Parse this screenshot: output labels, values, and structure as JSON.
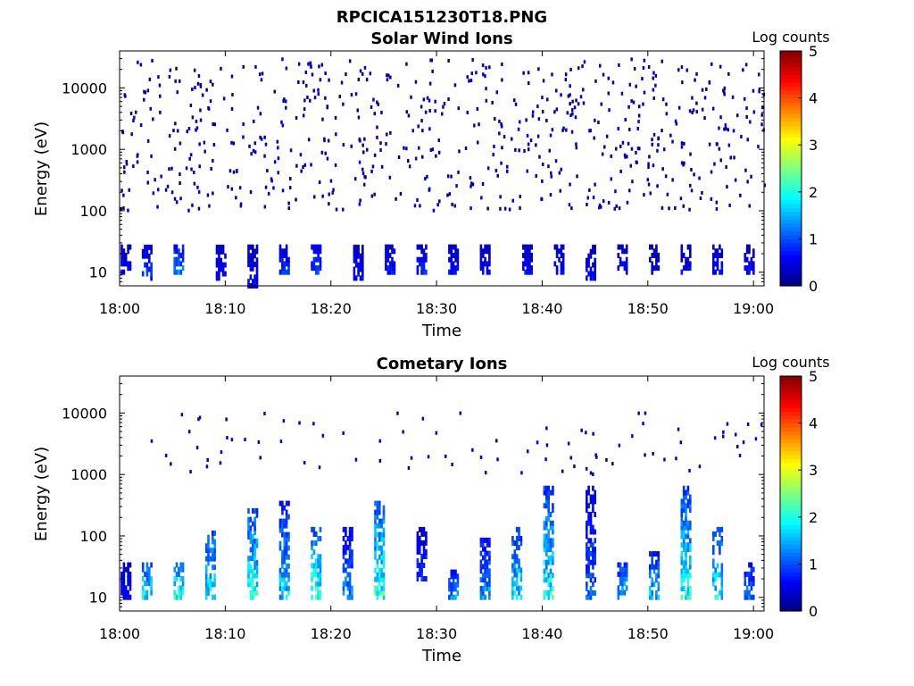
{
  "figure": {
    "title": "RPCICA151230T18.PNG"
  },
  "chart_data": [
    {
      "type": "heatmap",
      "title": "Solar Wind Ions",
      "xlabel": "Time",
      "ylabel": "Energy (eV)",
      "x_ticks": [
        "18:00",
        "18:10",
        "18:20",
        "18:30",
        "18:40",
        "18:50",
        "19:00"
      ],
      "x_range": [
        "18:00",
        "19:01"
      ],
      "y_scale": "log",
      "y_ticks": [
        "10",
        "100",
        "1000",
        "10000"
      ],
      "y_range": [
        6,
        40000
      ],
      "colorbar": {
        "label": "Log counts",
        "ticks": [
          "0",
          "1",
          "2",
          "3",
          "4",
          "5"
        ],
        "range": [
          0,
          5
        ],
        "colormap": "jet"
      },
      "background_counts": {
        "energy_range_eV": [
          100,
          30000
        ],
        "log_counts": 0.1,
        "description_level": "sparse low counts"
      },
      "bursts": [
        {
          "time": "18:00",
          "energy_low_eV": 10,
          "energy_high_eV": 30,
          "log_counts": 0.5
        },
        {
          "time": "18:02",
          "energy_low_eV": 8,
          "energy_high_eV": 30,
          "log_counts": 0.8
        },
        {
          "time": "18:05",
          "energy_low_eV": 10,
          "energy_high_eV": 30,
          "log_counts": 1.2
        },
        {
          "time": "18:09",
          "energy_low_eV": 8,
          "energy_high_eV": 30,
          "log_counts": 0.6
        },
        {
          "time": "18:12",
          "energy_low_eV": 6,
          "energy_high_eV": 30,
          "log_counts": 0.6
        },
        {
          "time": "18:15",
          "energy_low_eV": 10,
          "energy_high_eV": 30,
          "log_counts": 0.8
        },
        {
          "time": "18:18",
          "energy_low_eV": 10,
          "energy_high_eV": 30,
          "log_counts": 0.9
        },
        {
          "time": "18:22",
          "energy_low_eV": 8,
          "energy_high_eV": 30,
          "log_counts": 0.6
        },
        {
          "time": "18:25",
          "energy_low_eV": 10,
          "energy_high_eV": 30,
          "log_counts": 0.7
        },
        {
          "time": "18:28",
          "energy_low_eV": 10,
          "energy_high_eV": 30,
          "log_counts": 0.7
        },
        {
          "time": "18:31",
          "energy_low_eV": 10,
          "energy_high_eV": 30,
          "log_counts": 0.6
        },
        {
          "time": "18:34",
          "energy_low_eV": 10,
          "energy_high_eV": 30,
          "log_counts": 0.6
        },
        {
          "time": "18:38",
          "energy_low_eV": 10,
          "energy_high_eV": 30,
          "log_counts": 0.6
        },
        {
          "time": "18:41",
          "energy_low_eV": 10,
          "energy_high_eV": 30,
          "log_counts": 0.6
        },
        {
          "time": "18:44",
          "energy_low_eV": 8,
          "energy_high_eV": 30,
          "log_counts": 0.6
        },
        {
          "time": "18:47",
          "energy_low_eV": 10,
          "energy_high_eV": 30,
          "log_counts": 0.6
        },
        {
          "time": "18:50",
          "energy_low_eV": 10,
          "energy_high_eV": 30,
          "log_counts": 0.5
        },
        {
          "time": "18:53",
          "energy_low_eV": 10,
          "energy_high_eV": 30,
          "log_counts": 0.6
        },
        {
          "time": "18:56",
          "energy_low_eV": 10,
          "energy_high_eV": 30,
          "log_counts": 0.6
        },
        {
          "time": "18:59",
          "energy_low_eV": 10,
          "energy_high_eV": 30,
          "log_counts": 0.6
        }
      ]
    },
    {
      "type": "heatmap",
      "title": "Cometary Ions",
      "xlabel": "Time",
      "ylabel": "Energy (eV)",
      "x_ticks": [
        "18:00",
        "18:10",
        "18:20",
        "18:30",
        "18:40",
        "18:50",
        "19:00"
      ],
      "x_range": [
        "18:00",
        "19:01"
      ],
      "y_scale": "log",
      "y_ticks": [
        "10",
        "100",
        "1000",
        "10000"
      ],
      "y_range": [
        6,
        40000
      ],
      "colorbar": {
        "label": "Log counts",
        "ticks": [
          "0",
          "1",
          "2",
          "3",
          "4",
          "5"
        ],
        "range": [
          0,
          5
        ],
        "colormap": "jet"
      },
      "background_counts": {
        "energy_range_eV": [
          1000,
          10000
        ],
        "log_counts": 0.2,
        "description_level": "very sparse"
      },
      "bursts": [
        {
          "time": "18:00",
          "energy_low_eV": 10,
          "energy_high_eV": 40,
          "log_counts": 0.6
        },
        {
          "time": "18:02",
          "energy_low_eV": 10,
          "energy_high_eV": 40,
          "log_counts": 1.8
        },
        {
          "time": "18:05",
          "energy_low_eV": 10,
          "energy_high_eV": 40,
          "log_counts": 2.0
        },
        {
          "time": "18:08",
          "energy_low_eV": 10,
          "energy_high_eV": 130,
          "log_counts": 1.8
        },
        {
          "time": "18:12",
          "energy_low_eV": 10,
          "energy_high_eV": 300,
          "log_counts": 1.9
        },
        {
          "time": "18:15",
          "energy_low_eV": 10,
          "energy_high_eV": 400,
          "log_counts": 1.5
        },
        {
          "time": "18:18",
          "energy_low_eV": 10,
          "energy_high_eV": 150,
          "log_counts": 2.0
        },
        {
          "time": "18:21",
          "energy_low_eV": 10,
          "energy_high_eV": 150,
          "log_counts": 1.2
        },
        {
          "time": "18:24",
          "energy_low_eV": 10,
          "energy_high_eV": 400,
          "log_counts": 2.0
        },
        {
          "time": "18:28",
          "energy_low_eV": 20,
          "energy_high_eV": 150,
          "log_counts": 0.8
        },
        {
          "time": "18:31",
          "energy_low_eV": 10,
          "energy_high_eV": 30,
          "log_counts": 1.2
        },
        {
          "time": "18:34",
          "energy_low_eV": 10,
          "energy_high_eV": 100,
          "log_counts": 1.3
        },
        {
          "time": "18:37",
          "energy_low_eV": 10,
          "energy_high_eV": 150,
          "log_counts": 1.6
        },
        {
          "time": "18:40",
          "energy_low_eV": 10,
          "energy_high_eV": 700,
          "log_counts": 1.8
        },
        {
          "time": "18:44",
          "energy_low_eV": 10,
          "energy_high_eV": 700,
          "log_counts": 1.0
        },
        {
          "time": "18:47",
          "energy_low_eV": 10,
          "energy_high_eV": 40,
          "log_counts": 1.5
        },
        {
          "time": "18:50",
          "energy_low_eV": 10,
          "energy_high_eV": 60,
          "log_counts": 1.5
        },
        {
          "time": "18:53",
          "energy_low_eV": 10,
          "energy_high_eV": 700,
          "log_counts": 1.8
        },
        {
          "time": "18:56",
          "energy_low_eV": 10,
          "energy_high_eV": 150,
          "log_counts": 1.7
        },
        {
          "time": "18:59",
          "energy_low_eV": 10,
          "energy_high_eV": 40,
          "log_counts": 1.2
        }
      ]
    }
  ]
}
